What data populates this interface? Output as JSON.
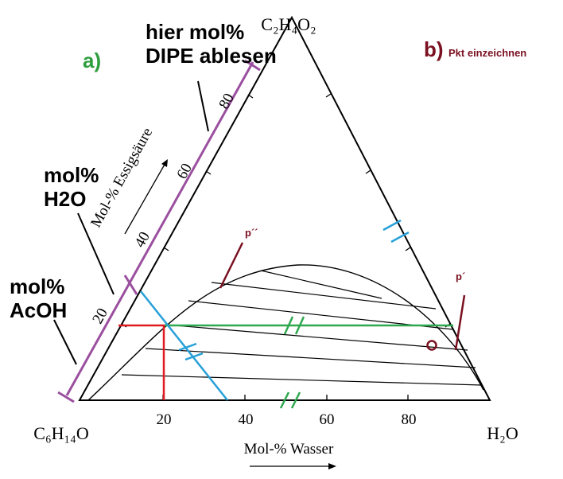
{
  "annotations": {
    "read_dipe": [
      "hier mol%",
      "DIPE ablesen"
    ],
    "mol_h2o": [
      "mol%",
      "H2O"
    ],
    "mol_acoh": [
      "mol%",
      "AcOH"
    ],
    "label_a": "a)",
    "label_b": "b)",
    "label_b_text": "Pkt einzeichnen",
    "p_double_prime": "p´´",
    "p_prime": "p´"
  },
  "vertices": {
    "top": "C₂H₄O₂",
    "left": "C₆H₁₄O",
    "right": "H₂O"
  },
  "axes": {
    "bottom_title": "Mol-% Wasser",
    "left_title": "Mol-% Essigsäure",
    "bottom_ticks": [
      "20",
      "40",
      "60",
      "80"
    ],
    "left_ticks": [
      "20",
      "40",
      "60",
      "80"
    ]
  },
  "colors": {
    "purple": "#9b4f9f",
    "red": "#e01b24",
    "green": "#2fa84f",
    "blue": "#27a0d8",
    "dark_red": "#7a1020",
    "label_a_green": "#2e9e3e"
  }
}
